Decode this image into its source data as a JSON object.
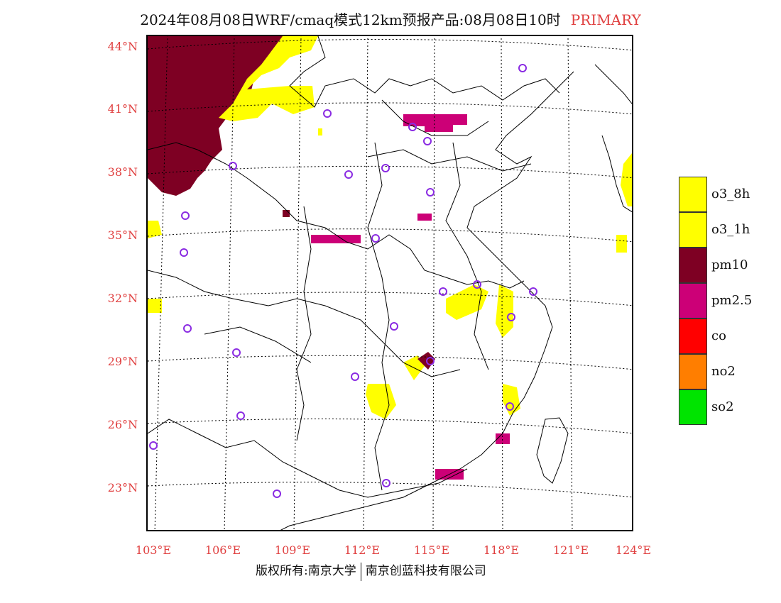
{
  "title": {
    "text": "2024年08月08日WRF/cmaq模式12km预报产品:08月08日10时",
    "tag": "PRIMARY",
    "tag_color": "#e04040"
  },
  "axes": {
    "lat_labels": [
      "44°N",
      "41°N",
      "38°N",
      "35°N",
      "32°N",
      "29°N",
      "26°N",
      "23°N"
    ],
    "lon_labels": [
      "103°E",
      "106°E",
      "109°E",
      "112°E",
      "115°E",
      "118°E",
      "121°E",
      "124°E"
    ],
    "label_color": "#e04040"
  },
  "legend": [
    {
      "label": "o3_8h",
      "color": "#ffff00"
    },
    {
      "label": "o3_1h",
      "color": "#ffff00"
    },
    {
      "label": "pm10",
      "color": "#7e0023"
    },
    {
      "label": "pm2.5",
      "color": "#cc0077"
    },
    {
      "label": "co",
      "color": "#ff0000"
    },
    {
      "label": "no2",
      "color": "#ff7e00"
    },
    {
      "label": "so2",
      "color": "#00e400"
    }
  ],
  "footer": {
    "left": "版权所有:南京大学",
    "right": "南京创蓝科技有限公司"
  },
  "colors": {
    "pm10": "#7e0023",
    "o3": "#ffff00",
    "pm25": "#cc0077",
    "station": "#8a2be2",
    "no2": "#ff7e00"
  }
}
